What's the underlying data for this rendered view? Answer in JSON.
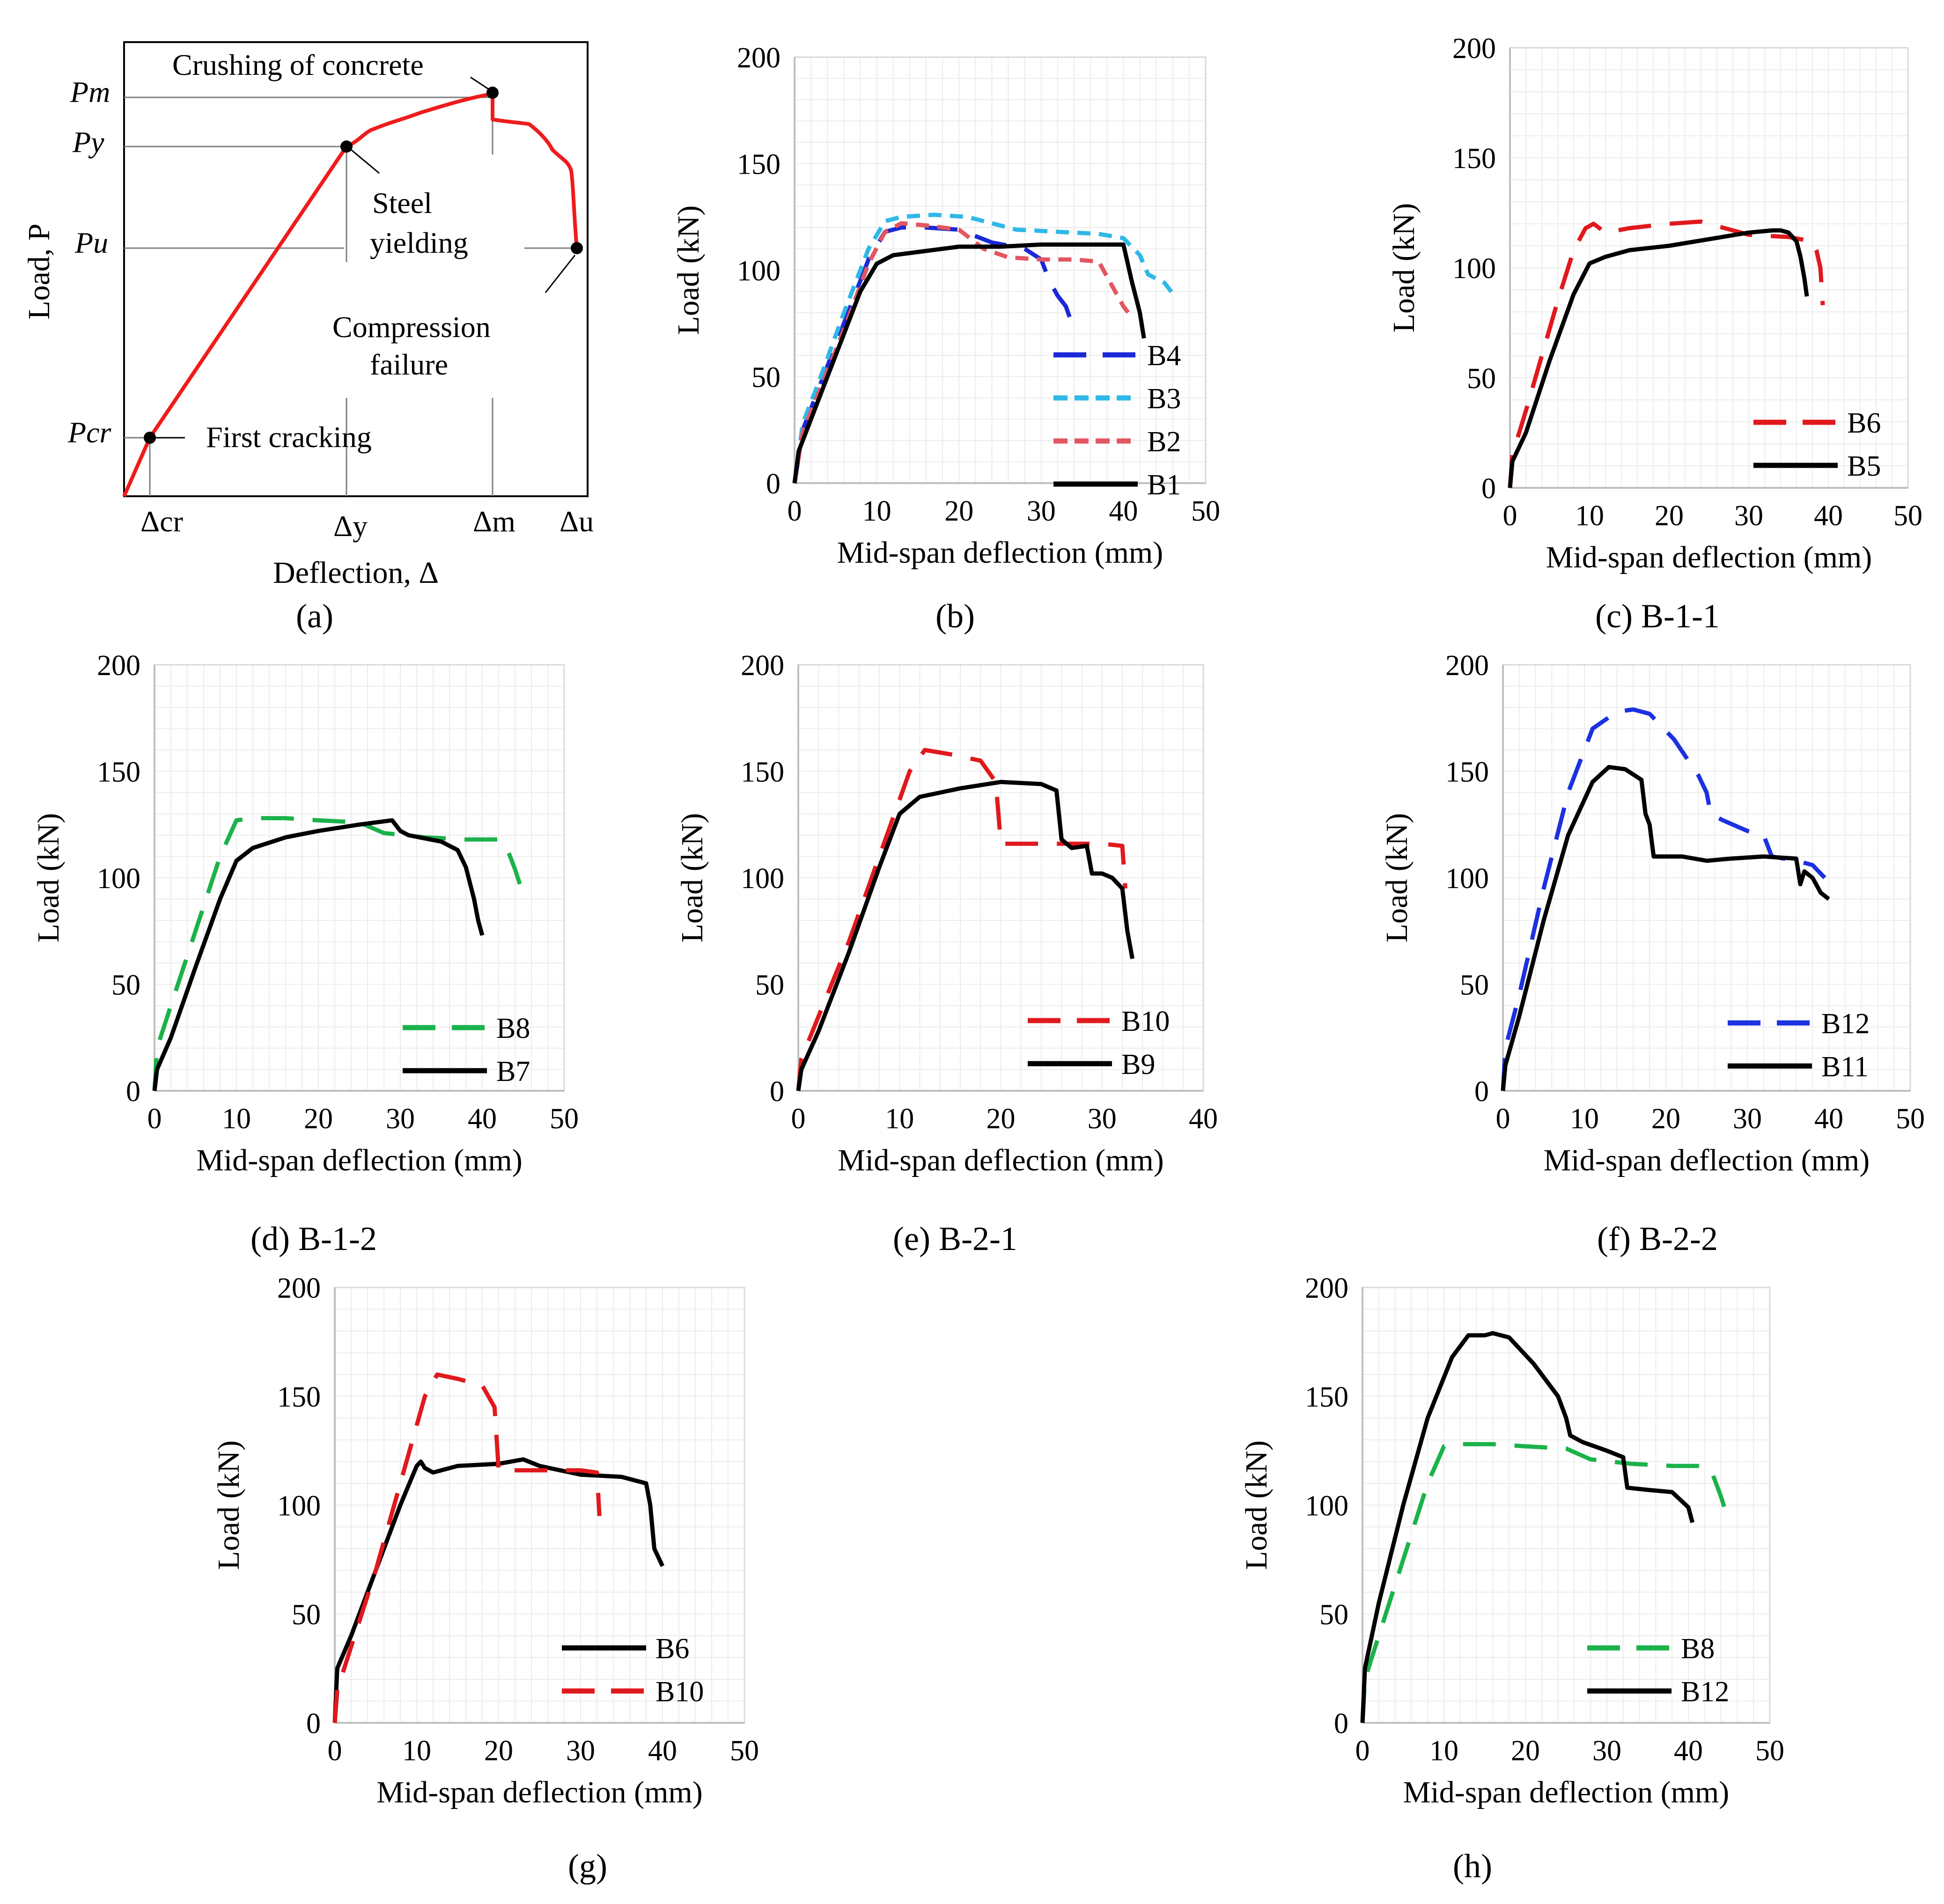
{
  "figure_captions": {
    "a": "(a)",
    "b": "(b)",
    "c": "(c) B-1-1",
    "d": "(d) B-1-2",
    "e": "(e) B-2-1",
    "f": "(f) B-2-2",
    "g": "(g)",
    "h": "(h)"
  },
  "panel_a": {
    "ylabel": "Load, P",
    "xlabel": "Deflection, Δ",
    "y_labels": [
      "Pm",
      "Py",
      "Pu",
      "Pcr"
    ],
    "x_labels": [
      "Δcr",
      "Δy",
      "Δm",
      "Δu"
    ],
    "annotations": {
      "crushing": "Crushing of concrete",
      "steel1": "Steel",
      "steel2": "yielding",
      "comp1": "Compression",
      "comp2": "failure",
      "crack": "First cracking"
    },
    "color": "#ee1c1c"
  },
  "colors": {
    "black": "#000000",
    "red": "#e0191d",
    "blue": "#1c28d6",
    "blue_light": "#5b6ee8",
    "cyan": "#2fb8e8",
    "pink": "#e25662",
    "green": "#1bb24b",
    "blue2": "#1c31e0"
  },
  "chart_data": [
    {
      "id": "b",
      "type": "line",
      "title": "(b)",
      "xlabel": "Mid-span deflection (mm)",
      "ylabel": "Load (kN)",
      "xlim": [
        0,
        50
      ],
      "ylim": [
        0,
        200
      ],
      "xticks": [
        0,
        10,
        20,
        30,
        40,
        50
      ],
      "yticks": [
        0,
        50,
        100,
        150,
        200
      ],
      "series": [
        {
          "name": "B4",
          "style": "longdash",
          "color": "#1c28d6",
          "x": [
            0,
            1,
            3,
            6,
            9,
            11,
            13,
            16,
            20,
            24,
            28,
            30,
            31,
            32,
            33,
            34
          ],
          "y": [
            0,
            25,
            45,
            75,
            105,
            118,
            120,
            120,
            119,
            113,
            110,
            105,
            95,
            88,
            83,
            72
          ]
        },
        {
          "name": "B3",
          "style": "shortdash",
          "color": "#2fb8e8",
          "x": [
            0,
            1,
            3,
            6,
            9,
            11,
            13,
            17,
            21,
            24,
            27,
            32,
            37,
            40,
            42,
            43,
            45,
            46
          ],
          "y": [
            0,
            28,
            48,
            80,
            110,
            123,
            125,
            126,
            125,
            122,
            119,
            118,
            117,
            115,
            107,
            98,
            94,
            89
          ]
        },
        {
          "name": "B2",
          "style": "shortdash",
          "color": "#e25662",
          "x": [
            0,
            1,
            3,
            6,
            9,
            11,
            13,
            16,
            20,
            23,
            26,
            30,
            34,
            37,
            38,
            39,
            40,
            41
          ],
          "y": [
            0,
            24,
            43,
            72,
            103,
            118,
            122,
            121,
            119,
            110,
            106,
            105,
            105,
            104,
            97,
            90,
            83,
            78
          ]
        },
        {
          "name": "B1",
          "style": "solid",
          "color": "#000000",
          "x": [
            0,
            0.5,
            2,
            5,
            8,
            10,
            12,
            16,
            20,
            25,
            30,
            35,
            38,
            40,
            41,
            42,
            42.5
          ],
          "y": [
            0,
            15,
            30,
            60,
            90,
            103,
            107,
            109,
            111,
            111,
            112,
            112,
            112,
            112,
            95,
            80,
            68
          ]
        }
      ]
    },
    {
      "id": "c",
      "type": "line",
      "title": "(c) B-1-1",
      "xlabel": "Mid-span deflection (mm)",
      "ylabel": "Load (kN)",
      "xlim": [
        0,
        50
      ],
      "ylim": [
        0,
        200
      ],
      "xticks": [
        0,
        10,
        20,
        30,
        40,
        50
      ],
      "yticks": [
        0,
        50,
        100,
        150,
        200
      ],
      "series": [
        {
          "name": "B6",
          "style": "longdash",
          "color": "#e0191d",
          "x": [
            0,
            0.3,
            2,
            4,
            6,
            8,
            9.5,
            10.5,
            12,
            15,
            20,
            24,
            27,
            30,
            35,
            38,
            38.5,
            39,
            39.3
          ],
          "y": [
            0,
            15,
            35,
            60,
            85,
            108,
            118,
            120,
            116,
            118,
            120,
            121,
            118,
            115,
            114,
            112,
            108,
            100,
            83
          ]
        },
        {
          "name": "B5",
          "style": "solid",
          "color": "#000000",
          "x": [
            0,
            0.3,
            2,
            5,
            8,
            10,
            12,
            15,
            20,
            25,
            30,
            33,
            34,
            35,
            36,
            36.5,
            37,
            37.3
          ],
          "y": [
            0,
            12,
            25,
            58,
            88,
            102,
            105,
            108,
            110,
            113,
            116,
            117,
            117,
            116,
            112,
            105,
            95,
            87
          ]
        }
      ]
    },
    {
      "id": "d",
      "type": "line",
      "title": "(d) B-1-2",
      "xlabel": "Mid-span deflection (mm)",
      "ylabel": "Load (kN)",
      "xlim": [
        0,
        50
      ],
      "ylim": [
        0,
        200
      ],
      "xticks": [
        0,
        10,
        20,
        30,
        40,
        50
      ],
      "yticks": [
        0,
        50,
        100,
        150,
        200
      ],
      "series": [
        {
          "name": "B8",
          "style": "longdash",
          "color": "#1bb24b",
          "x": [
            0,
            0.3,
            2,
            5,
            8,
            10,
            12,
            16,
            20,
            25,
            28,
            33,
            38,
            42,
            43,
            44,
            44.5,
            45
          ],
          "y": [
            0,
            20,
            40,
            75,
            110,
            127,
            128,
            128,
            127,
            126,
            121,
            119,
            118,
            118,
            114,
            104,
            98,
            92
          ]
        },
        {
          "name": "B7",
          "style": "solid",
          "color": "#000000",
          "x": [
            0,
            0.3,
            2,
            5,
            8,
            10,
            12,
            16,
            20,
            25,
            29,
            30,
            31,
            35,
            37,
            38,
            39,
            39.5,
            40
          ],
          "y": [
            0,
            10,
            25,
            58,
            90,
            108,
            114,
            119,
            122,
            125,
            127,
            122,
            120,
            117,
            113,
            105,
            90,
            80,
            73
          ]
        }
      ]
    },
    {
      "id": "e",
      "type": "line",
      "title": "(e) B-2-1",
      "xlabel": "Mid-span deflection (mm)",
      "ylabel": "Load (kN)",
      "xlim": [
        0,
        40
      ],
      "ylim": [
        0,
        200
      ],
      "xticks": [
        0,
        10,
        20,
        30,
        40
      ],
      "yticks": [
        0,
        50,
        100,
        150,
        200
      ],
      "series": [
        {
          "name": "B10",
          "style": "longdash",
          "color": "#e0191d",
          "x": [
            0,
            0.3,
            2,
            5,
            8,
            11,
            12.5,
            15,
            18,
            19.5,
            19.8,
            20,
            24,
            27,
            30,
            32,
            32.3
          ],
          "y": [
            0,
            15,
            35,
            70,
            110,
            150,
            160,
            158,
            155,
            145,
            128,
            116,
            116,
            116,
            116,
            115,
            95
          ]
        },
        {
          "name": "B9",
          "style": "solid",
          "color": "#000000",
          "x": [
            0,
            0.3,
            2,
            5,
            8,
            10,
            12,
            16,
            20,
            24,
            25.5,
            26,
            27,
            28.5,
            29,
            30,
            31,
            32,
            32.5,
            33
          ],
          "y": [
            0,
            10,
            28,
            65,
            105,
            130,
            138,
            142,
            145,
            144,
            141,
            118,
            114,
            115,
            102,
            102,
            100,
            95,
            75,
            62
          ]
        }
      ]
    },
    {
      "id": "f",
      "type": "line",
      "title": "(f) B-2-2",
      "xlabel": "Mid-span deflection (mm)",
      "ylabel": "Load (kN)",
      "xlim": [
        0,
        50
      ],
      "ylim": [
        0,
        200
      ],
      "xticks": [
        0,
        10,
        20,
        30,
        40,
        50
      ],
      "yticks": [
        0,
        50,
        100,
        150,
        200
      ],
      "series": [
        {
          "name": "B12",
          "style": "longdash",
          "color": "#1c31e0",
          "x": [
            0,
            0.3,
            2,
            5,
            8,
            11,
            14,
            16,
            18,
            21,
            24,
            25,
            25.5,
            27,
            30,
            32,
            33,
            36,
            38,
            39.5
          ],
          "y": [
            0,
            20,
            45,
            95,
            140,
            170,
            178,
            179,
            177,
            165,
            148,
            140,
            130,
            127,
            122,
            120,
            110,
            108,
            106,
            100
          ]
        },
        {
          "name": "B11",
          "style": "solid",
          "color": "#000000",
          "x": [
            0,
            0.3,
            2,
            5,
            8,
            11,
            13,
            15,
            17,
            17.5,
            18,
            18.5,
            19,
            22,
            25,
            28,
            32,
            36,
            36.5,
            37,
            38,
            39,
            40
          ],
          "y": [
            0,
            12,
            35,
            80,
            120,
            145,
            152,
            151,
            146,
            130,
            125,
            110,
            110,
            110,
            108,
            109,
            110,
            109,
            97,
            103,
            100,
            93,
            90
          ]
        }
      ]
    },
    {
      "id": "g",
      "type": "line",
      "title": "(g)",
      "xlabel": "Mid-span deflection (mm)",
      "ylabel": "Load (kN)",
      "xlim": [
        0,
        50
      ],
      "ylim": [
        0,
        200
      ],
      "xticks": [
        0,
        10,
        20,
        30,
        40,
        50
      ],
      "yticks": [
        0,
        50,
        100,
        150,
        200
      ],
      "series": [
        {
          "name": "B6",
          "style": "solid",
          "color": "#000000",
          "x": [
            0,
            0.3,
            2,
            4,
            6,
            8,
            10,
            10.5,
            11,
            12,
            15,
            20,
            23,
            25,
            30,
            35,
            38,
            38.5,
            39,
            40
          ],
          "y": [
            0,
            25,
            40,
            60,
            80,
            100,
            118,
            120,
            117,
            115,
            118,
            119,
            121,
            118,
            114,
            113,
            110,
            100,
            80,
            72
          ]
        },
        {
          "name": "B10",
          "style": "longdash",
          "color": "#e0191d",
          "x": [
            0,
            0.3,
            2,
            5,
            8,
            11,
            12.5,
            15,
            18,
            19.5,
            19.8,
            20,
            24,
            27,
            30,
            32,
            32.3
          ],
          "y": [
            0,
            15,
            35,
            70,
            110,
            150,
            160,
            158,
            155,
            145,
            128,
            116,
            116,
            116,
            116,
            115,
            95
          ]
        }
      ]
    },
    {
      "id": "h",
      "type": "line",
      "title": "(h)",
      "xlabel": "Mid-span deflection (mm)",
      "ylabel": "Load (kN)",
      "xlim": [
        0,
        50
      ],
      "ylim": [
        0,
        200
      ],
      "xticks": [
        0,
        10,
        20,
        30,
        40,
        50
      ],
      "yticks": [
        0,
        50,
        100,
        150,
        200
      ],
      "series": [
        {
          "name": "B8",
          "style": "longdash",
          "color": "#1bb24b",
          "x": [
            0,
            0.3,
            2,
            5,
            8,
            10,
            12,
            16,
            20,
            25,
            28,
            33,
            38,
            42,
            43,
            44,
            44.5,
            45
          ],
          "y": [
            0,
            20,
            40,
            75,
            110,
            127,
            128,
            128,
            127,
            126,
            121,
            119,
            118,
            118,
            114,
            104,
            98,
            92
          ]
        },
        {
          "name": "B12",
          "style": "solid",
          "color": "#000000",
          "x": [
            0,
            0.3,
            2,
            5,
            8,
            11,
            13,
            15,
            16,
            18,
            21,
            24,
            25,
            25.5,
            27,
            30,
            32,
            32.5,
            35,
            38,
            40,
            40.5
          ],
          "y": [
            0,
            25,
            55,
            100,
            140,
            168,
            178,
            178,
            179,
            177,
            165,
            150,
            140,
            132,
            129,
            125,
            122,
            108,
            107,
            106,
            99,
            92
          ]
        }
      ]
    }
  ]
}
